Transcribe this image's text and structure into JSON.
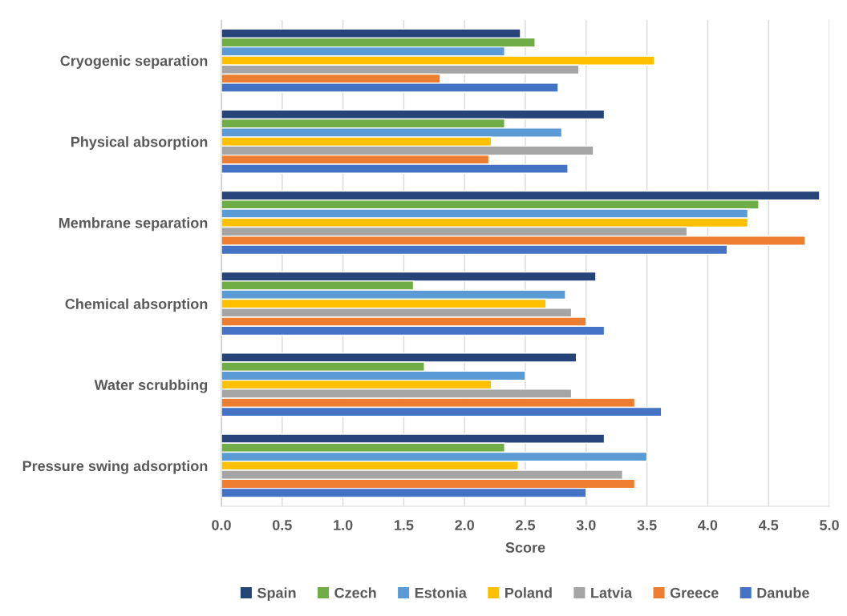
{
  "chart_data": {
    "type": "bar",
    "orientation": "horizontal",
    "xlabel": "Score",
    "categories": [
      "Cryogenic separation",
      "Physical absorption",
      "Membrane separation",
      "Chemical absorption",
      "Water scrubbing",
      "Pressure swing adsorption"
    ],
    "series": [
      {
        "name": "Spain",
        "color": "#264478",
        "values": [
          2.46,
          3.15,
          4.92,
          3.08,
          2.92,
          3.15
        ]
      },
      {
        "name": "Czech",
        "color": "#70ad47",
        "values": [
          2.58,
          2.33,
          4.42,
          1.58,
          1.67,
          2.33
        ]
      },
      {
        "name": "Estonia",
        "color": "#5b9bd5",
        "values": [
          2.33,
          2.8,
          4.33,
          2.83,
          2.5,
          3.5
        ]
      },
      {
        "name": "Poland",
        "color": "#ffc000",
        "values": [
          3.56,
          2.22,
          4.33,
          2.67,
          2.22,
          2.44
        ]
      },
      {
        "name": "Latvia",
        "color": "#a5a5a5",
        "values": [
          2.94,
          3.06,
          3.83,
          2.88,
          2.88,
          3.3
        ]
      },
      {
        "name": "Greece",
        "color": "#ed7d31",
        "values": [
          1.8,
          2.2,
          4.8,
          3.0,
          3.4,
          3.4
        ]
      },
      {
        "name": "Danube",
        "color": "#4472c4",
        "values": [
          2.77,
          2.85,
          4.16,
          3.15,
          3.62,
          3.0
        ]
      }
    ],
    "xlim": [
      0,
      5
    ],
    "xticks": [
      {
        "value": 0,
        "label": "0.0"
      },
      {
        "value": 0.5,
        "label": "0.5"
      },
      {
        "value": 1,
        "label": "1.0"
      },
      {
        "value": 1.5,
        "label": "1.5"
      },
      {
        "value": 2,
        "label": "2.0"
      },
      {
        "value": 2.5,
        "label": "2.5"
      },
      {
        "value": 3,
        "label": "3.0"
      },
      {
        "value": 3.5,
        "label": "3.5"
      },
      {
        "value": 4,
        "label": "4.0"
      },
      {
        "value": 4.5,
        "label": "4.5"
      },
      {
        "value": 5,
        "label": "5.0"
      }
    ],
    "grid": "x",
    "legend": "bottom"
  }
}
